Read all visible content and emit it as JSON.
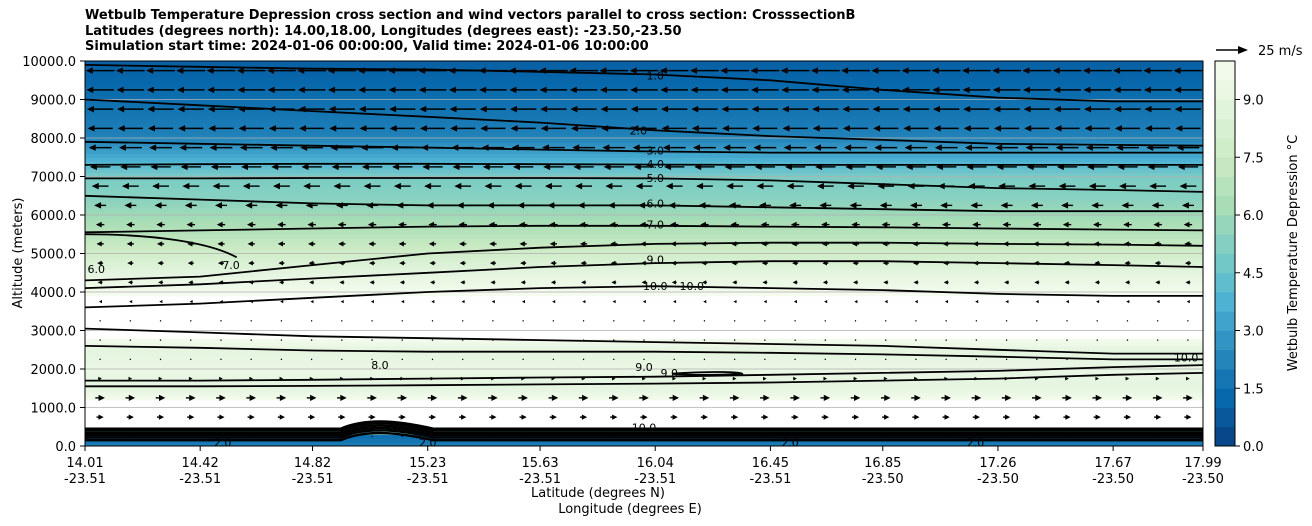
{
  "chart_data": {
    "type": "contourf",
    "title": {
      "line1": "Wetbulb Temperature Depression cross section and wind vectors parallel to cross section: CrosssectionB",
      "line2": "Latitudes (degrees north): 14.00,18.00, Longitudes (degrees east): -23.50,-23.50",
      "line3": "Simulation start time: 2024-01-06 00:00:00, Valid time: 2024-01-06 10:00:00"
    },
    "ylabel": "Altitude (meters)",
    "xlabel_line1": "Latitude (degrees N)",
    "xlabel_line2": "Longitude (degrees E)",
    "ylim": [
      0,
      10000
    ],
    "xlim": [
      14.01,
      17.99
    ],
    "y_ticks": [
      "0.0",
      "1000.0",
      "2000.0",
      "3000.0",
      "4000.0",
      "5000.0",
      "6000.0",
      "7000.0",
      "8000.0",
      "9000.0",
      "10000.0"
    ],
    "y_tick_values": [
      0,
      1000,
      2000,
      3000,
      4000,
      5000,
      6000,
      7000,
      8000,
      9000,
      10000
    ],
    "x_ticks": [
      {
        "lat": "14.01",
        "lon": "-23.51",
        "value": 14.01
      },
      {
        "lat": "14.42",
        "lon": "-23.51",
        "value": 14.42
      },
      {
        "lat": "14.82",
        "lon": "-23.51",
        "value": 14.82
      },
      {
        "lat": "15.23",
        "lon": "-23.51",
        "value": 15.23
      },
      {
        "lat": "15.63",
        "lon": "-23.51",
        "value": 15.63
      },
      {
        "lat": "16.04",
        "lon": "-23.51",
        "value": 16.04
      },
      {
        "lat": "16.45",
        "lon": "-23.51",
        "value": 16.45
      },
      {
        "lat": "16.85",
        "lon": "-23.50",
        "value": 16.85
      },
      {
        "lat": "17.26",
        "lon": "-23.50",
        "value": 17.26
      },
      {
        "lat": "17.67",
        "lon": "-23.50",
        "value": 17.67
      },
      {
        "lat": "17.99",
        "lon": "-23.50",
        "value": 17.99
      }
    ],
    "grid": "horizontal",
    "colorbar": {
      "label": "Wetbulb Temperature Depression $^\\circ$C",
      "label_text": "Wetbulb Temperature Depression ",
      "label_unit": "°C",
      "range": [
        0,
        10
      ],
      "ticks": [
        "0.0",
        "1.5",
        "3.0",
        "4.5",
        "6.0",
        "7.5",
        "9.0"
      ],
      "tick_values": [
        0,
        1.5,
        3.0,
        4.5,
        6.0,
        7.5,
        9.0
      ],
      "colormap": "GnBu_r",
      "colors": [
        "#084081",
        "#0868ac",
        "#2b8cbe",
        "#4eb3d3",
        "#7bccc4",
        "#a8ddb5",
        "#ccebc5",
        "#e0f3db",
        "#f7fcf0"
      ]
    },
    "quiver_key": {
      "label": "25 m/s",
      "speed": 25
    },
    "depression_profile": {
      "altitude_m": [
        0,
        250,
        500,
        1000,
        1500,
        2000,
        2500,
        3000,
        3500,
        4000,
        4500,
        5000,
        5500,
        6000,
        6500,
        7000,
        7500,
        8000,
        8500,
        9000,
        9500,
        10000
      ],
      "value_c": [
        2.0,
        1.5,
        10.0,
        10.5,
        9.0,
        9.3,
        9.0,
        10.5,
        11.0,
        9.8,
        9.0,
        7.8,
        6.8,
        6.0,
        5.3,
        5.0,
        3.5,
        2.2,
        1.8,
        1.5,
        1.2,
        1.0
      ]
    },
    "wind_profile": {
      "altitude_m": [
        250,
        750,
        1250,
        1750,
        2250,
        2750,
        3250,
        3750,
        4250,
        4750,
        5250,
        5750,
        6250,
        6750,
        7250,
        7750,
        8250,
        8750,
        9250,
        9750
      ],
      "u_ms": [
        0.5,
        3,
        4,
        1.5,
        0.5,
        0.5,
        0.5,
        -1,
        -2,
        -2.5,
        -3,
        -3.5,
        -5,
        -7,
        -8.5,
        -9.5,
        -10.5,
        -11,
        -11.5,
        -12
      ]
    },
    "contours": [
      {
        "label": "1.0",
        "label_x": 16.04,
        "label_y": 9620
      },
      {
        "label": "2.0",
        "label_x": 15.98,
        "label_y": 8200
      },
      {
        "label": "3.0",
        "label_x": 16.04,
        "label_y": 7680
      },
      {
        "label": "4.0",
        "label_x": 16.04,
        "label_y": 7320
      },
      {
        "label": "5.0",
        "label_x": 16.04,
        "label_y": 6960
      },
      {
        "label": "6.0",
        "label_x": 16.04,
        "label_y": 6300
      },
      {
        "label": "7.0",
        "label_x": 16.04,
        "label_y": 5750
      },
      {
        "label": "7.0",
        "label_x": 14.53,
        "label_y": 4700
      },
      {
        "label": "6.0",
        "label_x": 14.05,
        "label_y": 4600
      },
      {
        "label": "9.0",
        "label_x": 16.04,
        "label_y": 4850
      },
      {
        "label": "10.0",
        "label_x": 16.04,
        "label_y": 4150
      },
      {
        "label": "10.0",
        "label_x": 16.17,
        "label_y": 4150
      },
      {
        "label": "8.0",
        "label_x": 15.06,
        "label_y": 2100
      },
      {
        "label": "9.0",
        "label_x": 16.0,
        "label_y": 2050
      },
      {
        "label": "9.0",
        "label_x": 16.09,
        "label_y": 1900
      },
      {
        "label": "10.0",
        "label_x": 17.93,
        "label_y": 2300
      },
      {
        "label": "10.0",
        "label_x": 16.0,
        "label_y": 480
      },
      {
        "label": "2.0",
        "label_x": 14.5,
        "label_y": 90
      },
      {
        "label": "2.0",
        "label_x": 15.23,
        "label_y": 90
      },
      {
        "label": "2.0",
        "label_x": 16.52,
        "label_y": 90
      },
      {
        "label": "2.0",
        "label_x": 17.18,
        "label_y": 90
      }
    ]
  }
}
